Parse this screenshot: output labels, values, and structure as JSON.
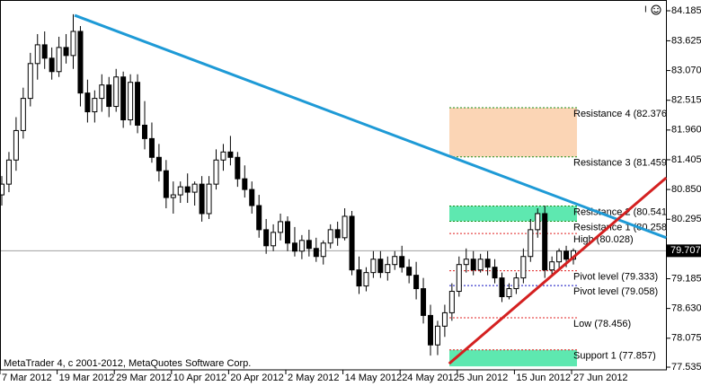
{
  "chart_data": {
    "type": "candlestick",
    "categories": [
      "7 Mar 2012",
      null,
      null,
      null,
      null,
      null,
      null,
      null,
      "19 Mar 2012",
      null,
      null,
      null,
      null,
      null,
      null,
      null,
      "29 Mar 2012",
      null,
      null,
      null,
      null,
      null,
      null,
      null,
      "10 Apr 2012",
      null,
      null,
      null,
      null,
      null,
      null,
      null,
      "20 Apr 2012",
      null,
      null,
      null,
      null,
      null,
      null,
      null,
      "2 May 2012",
      null,
      null,
      null,
      null,
      null,
      null,
      null,
      "14 May 2012",
      null,
      null,
      null,
      null,
      null,
      null,
      null,
      "24 May 2012",
      null,
      null,
      null,
      null,
      null,
      null,
      null,
      "5 Jun 2012",
      null,
      null,
      null,
      null,
      null,
      null,
      null,
      "15 Jun 2012",
      null,
      null,
      null,
      null,
      null,
      null,
      null,
      "27 Jun 2012"
    ],
    "open": [
      80.75,
      80.95,
      81.4,
      81.95,
      82.55,
      83.2,
      83.55,
      83.3,
      83.05,
      83.5,
      83.35,
      83.8,
      82.65,
      82.3,
      82.55,
      82.8,
      82.4,
      82.95,
      82.15,
      82.85,
      82.05,
      81.8,
      81.45,
      81.2,
      80.7,
      80.75,
      80.9,
      80.8,
      80.95,
      80.4,
      80.95,
      81.4,
      81.55,
      81.45,
      81.05,
      80.85,
      80.55,
      80.1,
      79.8,
      80.05,
      80.25,
      79.85,
      79.7,
      79.9,
      79.75,
      79.6,
      79.85,
      80.1,
      79.95,
      80.35,
      79.35,
      79.05,
      79.3,
      79.55,
      79.3,
      79.45,
      79.6,
      79.4,
      79.25,
      79.0,
      78.5,
      77.95,
      78.3,
      78.55,
      78.95,
      79.45,
      79.55,
      79.35,
      79.55,
      79.4,
      79.2,
      78.85,
      79.0,
      79.2,
      79.6,
      80.1,
      80.4,
      79.35,
      79.5,
      79.7,
      79.55
    ],
    "high": [
      81.1,
      81.55,
      82.2,
      82.75,
      83.4,
      83.75,
      83.8,
      83.5,
      83.7,
      83.75,
      84.12,
      83.9,
      82.9,
      82.7,
      83.0,
      82.95,
      83.1,
      83.05,
      83.0,
      83.0,
      82.5,
      82.1,
      81.7,
      81.4,
      81.0,
      81.0,
      81.15,
      81.0,
      81.1,
      81.1,
      81.6,
      81.7,
      81.85,
      81.55,
      81.3,
      81.0,
      80.75,
      80.3,
      80.2,
      80.4,
      80.35,
      80.15,
      80.0,
      80.1,
      79.95,
      79.9,
      80.2,
      80.25,
      80.5,
      80.45,
      79.6,
      79.4,
      79.7,
      79.7,
      79.6,
      79.7,
      79.8,
      79.55,
      79.5,
      79.2,
      78.7,
      78.4,
      78.7,
      79.1,
      79.6,
      79.75,
      79.7,
      79.65,
      79.7,
      79.55,
      79.3,
      79.1,
      79.3,
      79.75,
      80.3,
      80.5,
      80.55,
      79.6,
      79.75,
      79.8,
      79.75
    ],
    "low": [
      80.55,
      80.8,
      81.2,
      81.8,
      82.4,
      82.9,
      83.1,
      82.9,
      82.95,
      83.2,
      83.1,
      82.4,
      82.1,
      82.1,
      82.3,
      82.2,
      82.3,
      82.0,
      82.05,
      81.9,
      81.6,
      81.35,
      81.0,
      80.5,
      80.4,
      80.6,
      80.6,
      80.55,
      80.25,
      80.3,
      80.85,
      81.2,
      81.3,
      80.9,
      80.7,
      80.4,
      79.95,
      79.65,
      79.7,
      79.9,
      79.7,
      79.6,
      79.55,
      79.6,
      79.5,
      79.45,
      79.75,
      79.8,
      79.9,
      79.25,
      78.9,
      78.95,
      79.2,
      79.2,
      79.15,
      79.35,
      79.3,
      79.1,
      78.8,
      78.35,
      77.75,
      77.76,
      78.1,
      78.4,
      78.85,
      79.3,
      79.25,
      79.3,
      79.25,
      79.1,
      78.75,
      78.8,
      78.9,
      79.1,
      79.5,
      79.95,
      79.2,
      79.25,
      79.35,
      79.4,
      79.45
    ],
    "close": [
      80.95,
      81.4,
      81.95,
      82.55,
      83.2,
      83.55,
      83.3,
      83.05,
      83.5,
      83.35,
      83.8,
      82.65,
      82.3,
      82.55,
      82.8,
      82.4,
      82.95,
      82.15,
      82.85,
      82.05,
      81.8,
      81.45,
      81.2,
      80.7,
      80.75,
      80.9,
      80.8,
      80.95,
      80.4,
      80.95,
      81.4,
      81.55,
      81.45,
      81.05,
      80.85,
      80.55,
      80.1,
      79.8,
      80.05,
      80.25,
      79.85,
      79.7,
      79.9,
      79.75,
      79.6,
      79.85,
      80.1,
      79.95,
      80.35,
      79.35,
      79.05,
      79.3,
      79.55,
      79.3,
      79.45,
      79.6,
      79.4,
      79.25,
      79.0,
      78.5,
      77.95,
      78.3,
      78.55,
      78.95,
      79.45,
      79.55,
      79.35,
      79.55,
      79.4,
      79.2,
      78.85,
      79.0,
      79.2,
      79.6,
      80.1,
      80.4,
      79.35,
      79.5,
      79.7,
      79.55,
      79.707
    ],
    "ylim": [
      77.485,
      84.386
    ],
    "yticks": [
      84.185,
      83.625,
      {
        "value": 83.07,
        "label": "83.070"
      },
      82.515,
      {
        "value": 81.96,
        "label": "81.960"
      },
      81.405,
      {
        "value": 80.85,
        "label": "80.850"
      },
      80.295,
      79.185,
      {
        "value": 78.63,
        "label": "78.630"
      },
      78.075,
      77.535
    ],
    "current_price": 79.707,
    "trendlines": [
      {
        "color": "#1e9ad6",
        "x": [
          10.2,
          93
        ],
        "y": [
          84.1,
          79.95
        ]
      },
      {
        "color": "#d42020",
        "x": [
          62.6,
          93
        ],
        "y": [
          77.6,
          81.07
        ]
      }
    ],
    "zones": [
      {
        "from": 82.376,
        "to": 81.459,
        "color": "#fbd5b5"
      },
      {
        "from": 80.541,
        "to": 80.258,
        "color": "#5ee8b0"
      },
      {
        "from": 77.857,
        "to": 77.55,
        "color": "#5ee8b0"
      }
    ],
    "levels": [
      {
        "label": "Resistance 4 (82.376",
        "value": 82.376,
        "color": "#1a8f1a"
      },
      {
        "label": "Resistance 3 (81.459)",
        "value": 81.459,
        "color": "#1a8f1a"
      },
      {
        "label": "Resistance 2 (80.541",
        "value": 80.541,
        "color": "#1a8f1a"
      },
      {
        "label": "Resistance 1 (80.258",
        "value": 80.258,
        "color": "#1a8f1a"
      },
      {
        "label": "High (80.028)",
        "value": 80.028,
        "color": "#e02020"
      },
      {
        "label": "Pivot level (79.333)",
        "value": 79.333,
        "color": "#e02020"
      },
      {
        "label": "Pivot level (79.058)",
        "value": 79.058,
        "color": "#1010c0"
      },
      {
        "label": "Low (78.456)",
        "value": 78.456,
        "color": "#e02020"
      },
      {
        "label": "Support 1 (77.857)",
        "value": 77.857,
        "color": "#e02020"
      }
    ],
    "footer": "MetaTrader 4, c 2001-2012, MetaQuotes Software Corp."
  }
}
